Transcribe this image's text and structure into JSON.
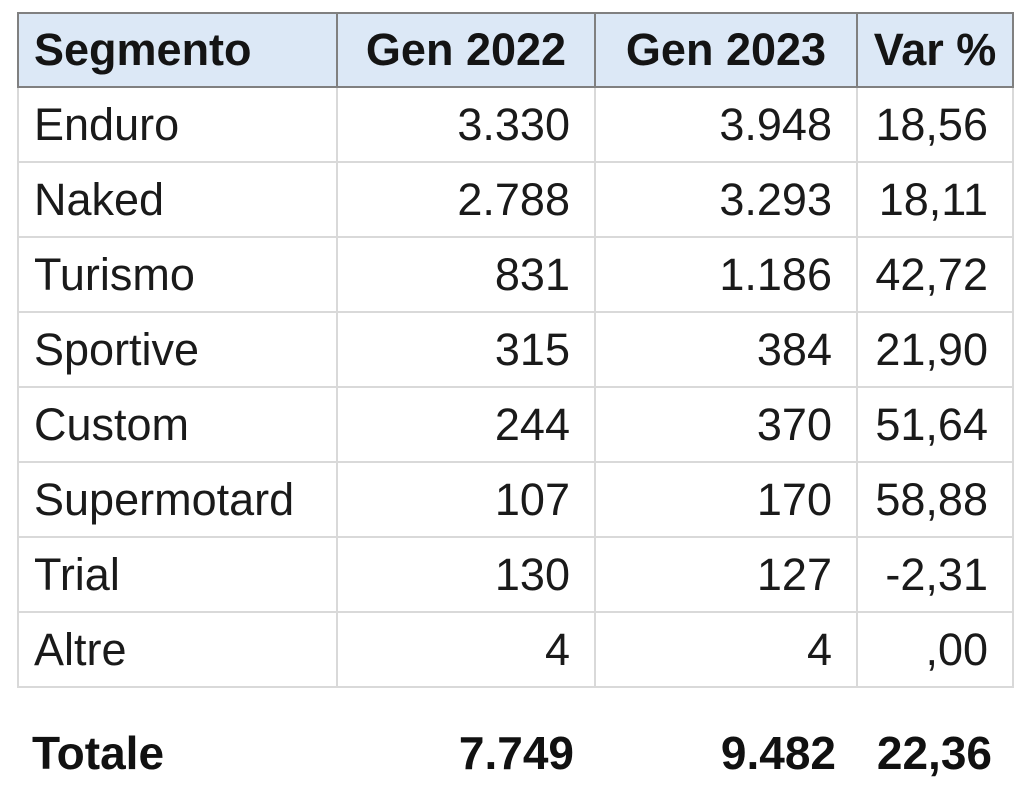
{
  "table": {
    "columns": [
      {
        "label": "Segmento"
      },
      {
        "label": "Gen 2022"
      },
      {
        "label": "Gen 2023"
      },
      {
        "label": "Var %"
      }
    ],
    "rows": [
      {
        "segment": "Enduro",
        "gen2022": "3.330",
        "gen2023": "3.948",
        "var_pct": "18,56"
      },
      {
        "segment": "Naked",
        "gen2022": "2.788",
        "gen2023": "3.293",
        "var_pct": "18,11"
      },
      {
        "segment": "Turismo",
        "gen2022": "831",
        "gen2023": "1.186",
        "var_pct": "42,72"
      },
      {
        "segment": "Sportive",
        "gen2022": "315",
        "gen2023": "384",
        "var_pct": "21,90"
      },
      {
        "segment": "Custom",
        "gen2022": "244",
        "gen2023": "370",
        "var_pct": "51,64"
      },
      {
        "segment": "Supermotard",
        "gen2022": "107",
        "gen2023": "170",
        "var_pct": "58,88"
      },
      {
        "segment": "Trial",
        "gen2022": "130",
        "gen2023": "127",
        "var_pct": "-2,31"
      },
      {
        "segment": "Altre",
        "gen2022": "4",
        "gen2023": "4",
        "var_pct": ",00"
      }
    ],
    "total": {
      "label": "Totale",
      "gen2022": "7.749",
      "gen2023": "9.482",
      "var_pct": "22,36"
    }
  },
  "colors": {
    "header_bg": "#dce8f6",
    "header_border": "#808080",
    "body_border": "#d9d9d9",
    "text": "#1a1a1a"
  },
  "chart_data": {
    "type": "table",
    "columns": [
      "Segmento",
      "Gen 2022",
      "Gen 2023",
      "Var %"
    ],
    "rows": [
      [
        "Enduro",
        3330,
        3948,
        18.56
      ],
      [
        "Naked",
        2788,
        3293,
        18.11
      ],
      [
        "Turismo",
        831,
        1186,
        42.72
      ],
      [
        "Sportive",
        315,
        384,
        21.9
      ],
      [
        "Custom",
        244,
        370,
        51.64
      ],
      [
        "Supermotard",
        107,
        170,
        58.88
      ],
      [
        "Trial",
        130,
        127,
        -2.31
      ],
      [
        "Altre",
        4,
        4,
        0.0
      ]
    ],
    "total": [
      "Totale",
      7749,
      9482,
      22.36
    ],
    "notes": "Numbers shown with Italian formatting: thousands separator '.', decimal comma; Altre Var % displayed as ',00'"
  }
}
